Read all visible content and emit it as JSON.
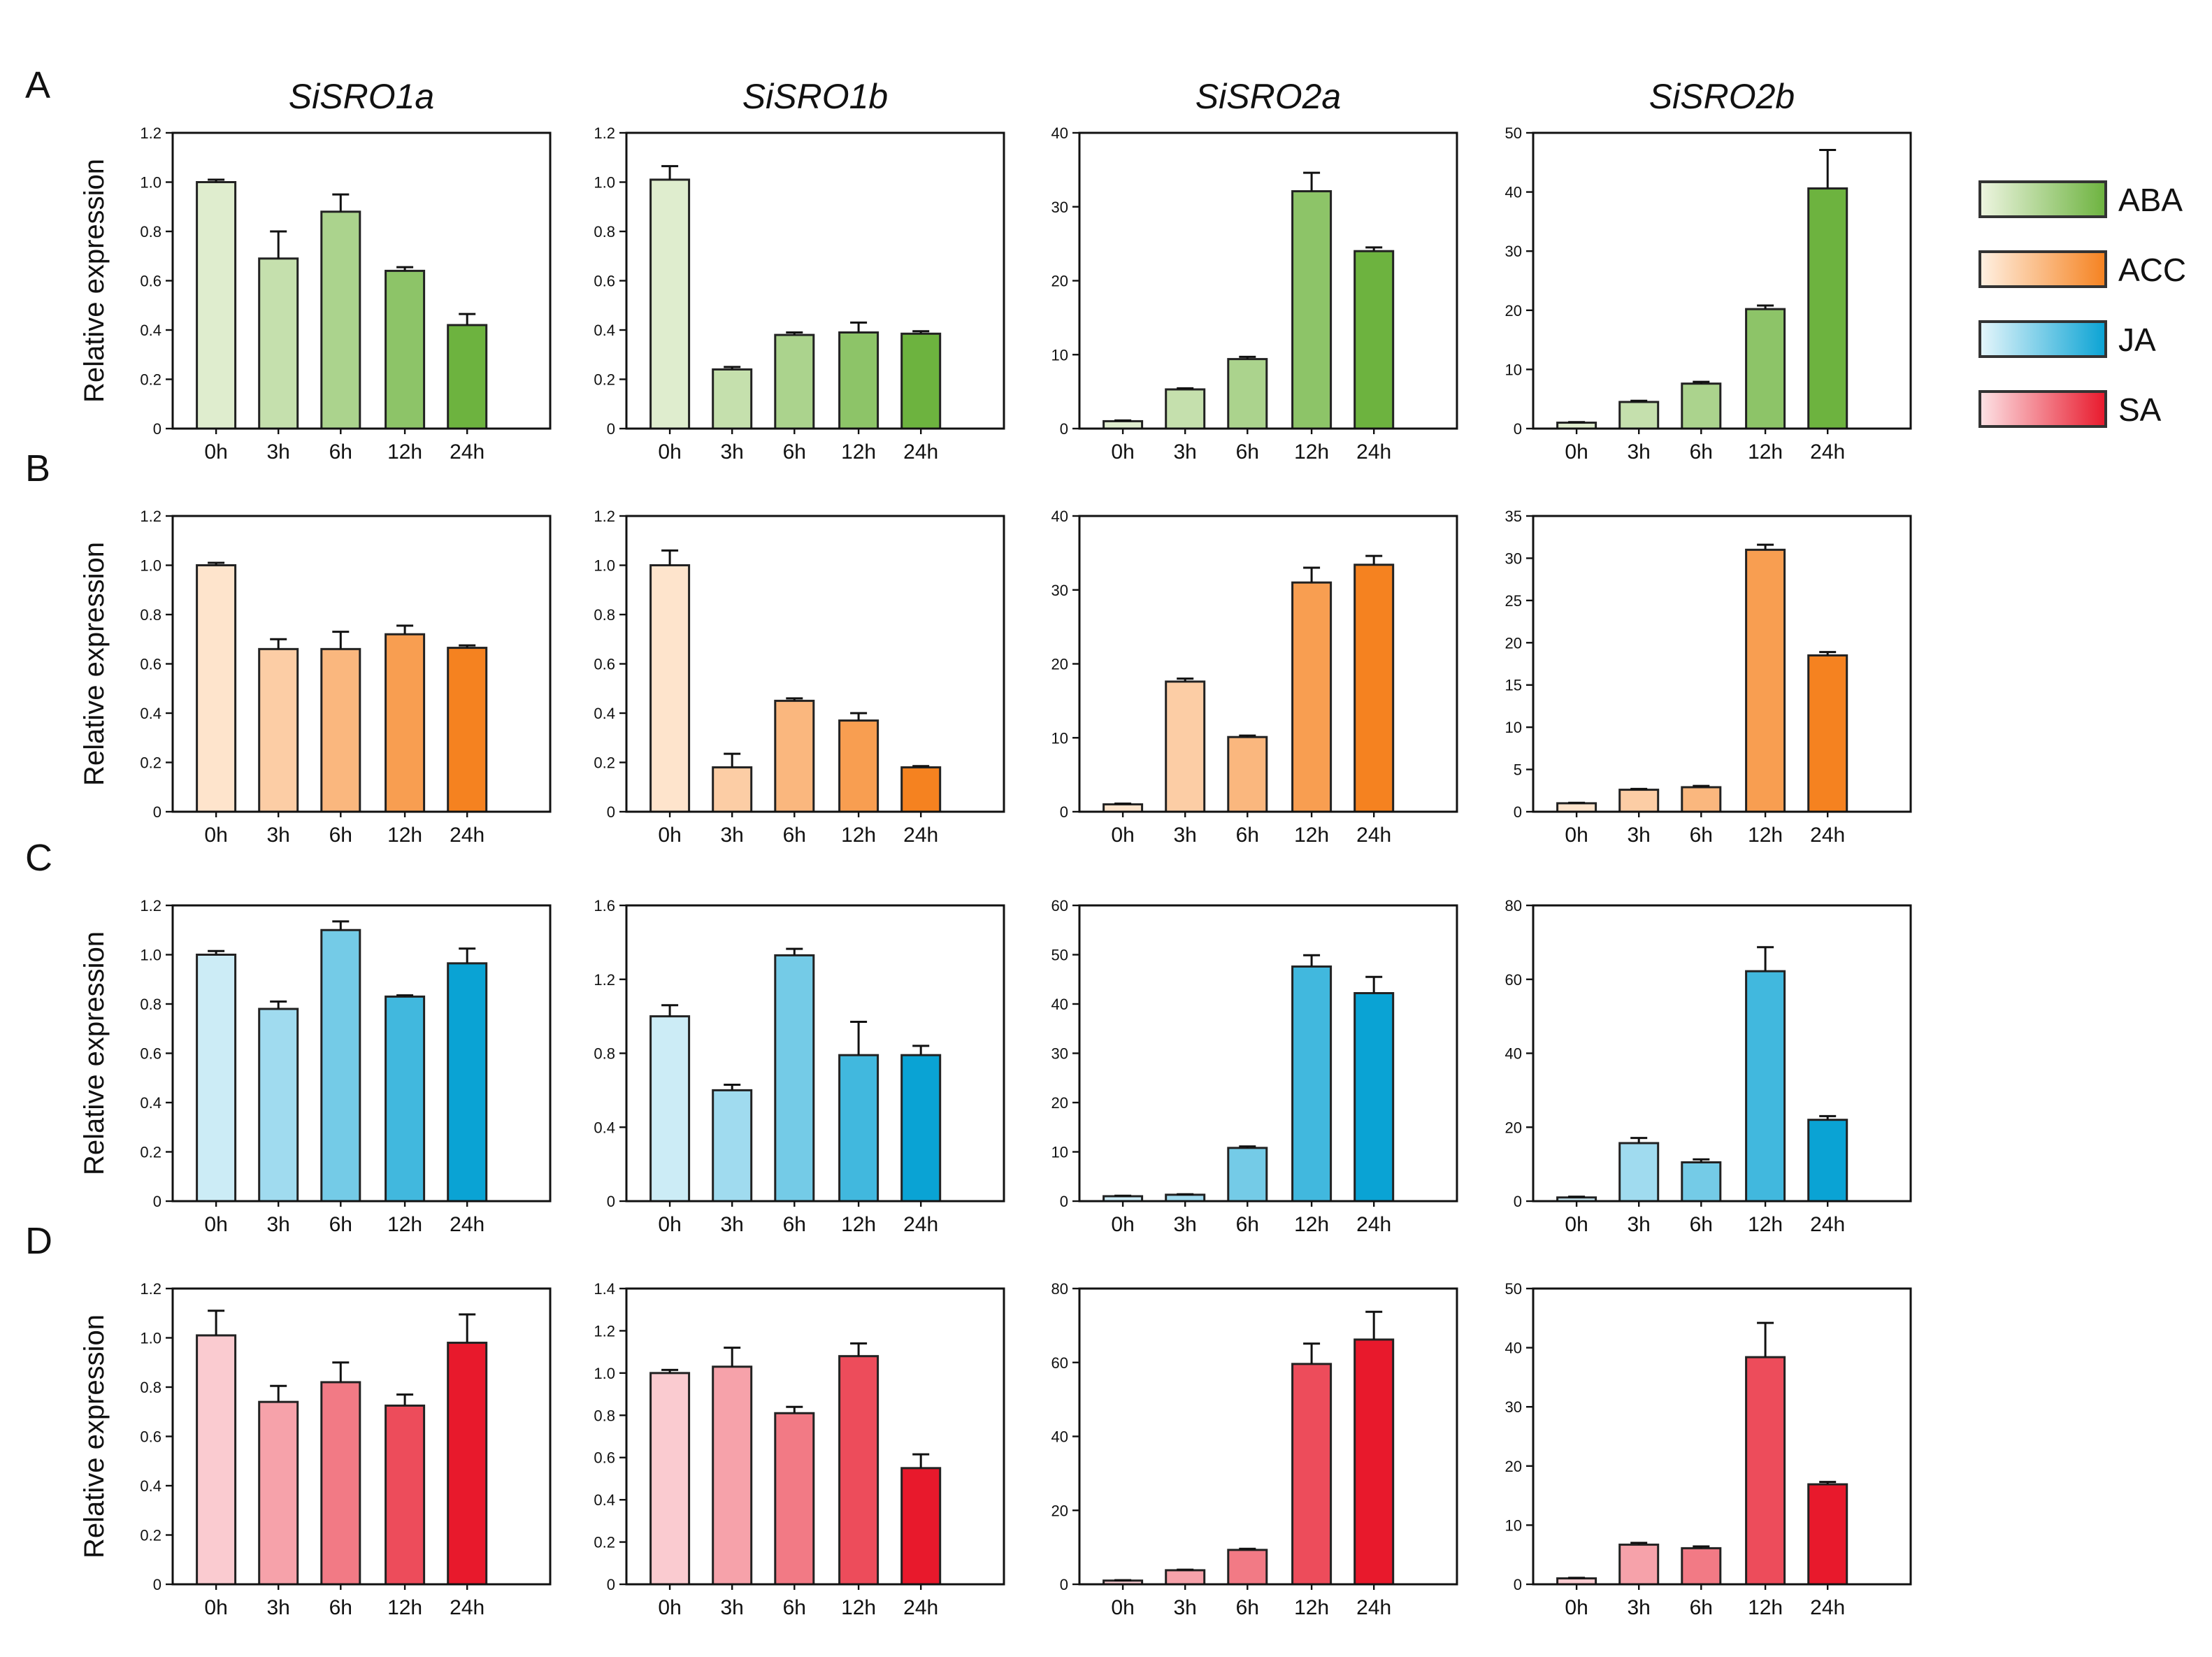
{
  "figure": {
    "legend": [
      {
        "label": "ABA",
        "light": "#eef5e1",
        "dark": "#6db33f"
      },
      {
        "label": "ACC",
        "light": "#fff1e3",
        "dark": "#f58220"
      },
      {
        "label": "JA",
        "light": "#e6f6fb",
        "dark": "#0aa3d4"
      },
      {
        "label": "SA",
        "light": "#fde3e6",
        "dark": "#e8192c"
      }
    ]
  },
  "chart_data": [
    {
      "type": "bar",
      "row": "A",
      "title": "SiSRO1a",
      "ylabel": "Relative expression",
      "treatment": "ABA",
      "categories": [
        "0h",
        "3h",
        "6h",
        "12h",
        "24h"
      ],
      "values": [
        1.0,
        0.69,
        0.88,
        0.64,
        0.42
      ],
      "errors": [
        0.01,
        0.11,
        0.07,
        0.015,
        0.045
      ],
      "ylim": [
        0,
        1.2
      ],
      "yticks": [
        "0",
        "0.2",
        "0.4",
        "0.6",
        "0.8",
        "1.0",
        "1.2"
      ]
    },
    {
      "type": "bar",
      "row": "A",
      "title": "SiSRO1b",
      "treatment": "ABA",
      "categories": [
        "0h",
        "3h",
        "6h",
        "12h",
        "24h"
      ],
      "values": [
        1.01,
        0.24,
        0.38,
        0.39,
        0.385
      ],
      "errors": [
        0.055,
        0.01,
        0.01,
        0.04,
        0.01
      ],
      "ylim": [
        0,
        1.2
      ],
      "yticks": [
        "0",
        "0.2",
        "0.4",
        "0.6",
        "0.8",
        "1.0",
        "1.2"
      ]
    },
    {
      "type": "bar",
      "row": "A",
      "title": "SiSRO2a",
      "treatment": "ABA",
      "categories": [
        "0h",
        "3h",
        "6h",
        "12h",
        "24h"
      ],
      "values": [
        1.0,
        5.3,
        9.4,
        32.1,
        24.0
      ],
      "errors": [
        0.1,
        0.15,
        0.3,
        2.5,
        0.5
      ],
      "ylim": [
        0,
        40
      ],
      "yticks": [
        "0",
        "10",
        "20",
        "30",
        "40"
      ]
    },
    {
      "type": "bar",
      "row": "A",
      "title": "SiSRO2b",
      "treatment": "ABA",
      "categories": [
        "0h",
        "3h",
        "6h",
        "12h",
        "24h"
      ],
      "values": [
        1.0,
        4.5,
        7.6,
        20.2,
        40.6
      ],
      "errors": [
        0.1,
        0.2,
        0.3,
        0.6,
        6.5
      ],
      "ylim": [
        0,
        50
      ],
      "yticks": [
        "0",
        "10",
        "20",
        "30",
        "40",
        "50"
      ]
    },
    {
      "type": "bar",
      "row": "B",
      "ylabel": "Relative expression",
      "treatment": "ACC",
      "categories": [
        "0h",
        "3h",
        "6h",
        "12h",
        "24h"
      ],
      "values": [
        1.0,
        0.66,
        0.66,
        0.72,
        0.665
      ],
      "errors": [
        0.01,
        0.04,
        0.07,
        0.035,
        0.01
      ],
      "ylim": [
        0,
        1.2
      ],
      "yticks": [
        "0",
        "0.2",
        "0.4",
        "0.6",
        "0.8",
        "1.0",
        "1.2"
      ]
    },
    {
      "type": "bar",
      "row": "B",
      "treatment": "ACC",
      "categories": [
        "0h",
        "3h",
        "6h",
        "12h",
        "24h"
      ],
      "values": [
        1.0,
        0.18,
        0.45,
        0.37,
        0.18
      ],
      "errors": [
        0.06,
        0.055,
        0.01,
        0.03,
        0.005
      ],
      "ylim": [
        0,
        1.2
      ],
      "yticks": [
        "0",
        "0.2",
        "0.4",
        "0.6",
        "0.8",
        "1.0",
        "1.2"
      ]
    },
    {
      "type": "bar",
      "row": "B",
      "treatment": "ACC",
      "categories": [
        "0h",
        "3h",
        "6h",
        "12h",
        "24h"
      ],
      "values": [
        1.0,
        17.6,
        10.1,
        31.0,
        33.4
      ],
      "errors": [
        0.1,
        0.4,
        0.2,
        2.0,
        1.2
      ],
      "ylim": [
        0,
        40
      ],
      "yticks": [
        "0",
        "10",
        "20",
        "30",
        "40"
      ]
    },
    {
      "type": "bar",
      "row": "B",
      "treatment": "ACC",
      "categories": [
        "0h",
        "3h",
        "6h",
        "12h",
        "24h"
      ],
      "values": [
        1.0,
        2.6,
        2.9,
        31.0,
        18.5
      ],
      "errors": [
        0.05,
        0.1,
        0.15,
        0.6,
        0.4
      ],
      "ylim": [
        0,
        35
      ],
      "yticks": [
        "0",
        "5",
        "10",
        "15",
        "20",
        "25",
        "30",
        "35"
      ]
    },
    {
      "type": "bar",
      "row": "C",
      "ylabel": "Relative expression",
      "treatment": "JA",
      "categories": [
        "0h",
        "3h",
        "6h",
        "12h",
        "24h"
      ],
      "values": [
        1.0,
        0.78,
        1.1,
        0.83,
        0.965
      ],
      "errors": [
        0.015,
        0.03,
        0.035,
        0.005,
        0.06
      ],
      "ylim": [
        0,
        1.2
      ],
      "yticks": [
        "0",
        "0.2",
        "0.4",
        "0.6",
        "0.8",
        "1.0",
        "1.2"
      ]
    },
    {
      "type": "bar",
      "row": "C",
      "treatment": "JA",
      "categories": [
        "0h",
        "3h",
        "6h",
        "12h",
        "24h"
      ],
      "values": [
        1.0,
        0.6,
        1.33,
        0.79,
        0.79
      ],
      "errors": [
        0.06,
        0.03,
        0.035,
        0.18,
        0.05
      ],
      "ylim": [
        0,
        1.6
      ],
      "yticks": [
        "0",
        "0.4",
        "0.8",
        "1.2",
        "1.6"
      ]
    },
    {
      "type": "bar",
      "row": "C",
      "treatment": "JA",
      "categories": [
        "0h",
        "3h",
        "6h",
        "12h",
        "24h"
      ],
      "values": [
        1.0,
        1.3,
        10.8,
        47.6,
        42.2
      ],
      "errors": [
        0.1,
        0.1,
        0.3,
        2.3,
        3.3
      ],
      "ylim": [
        0,
        60
      ],
      "yticks": [
        "0",
        "10",
        "20",
        "30",
        "40",
        "50",
        "60"
      ]
    },
    {
      "type": "bar",
      "row": "C",
      "treatment": "JA",
      "categories": [
        "0h",
        "3h",
        "6h",
        "12h",
        "24h"
      ],
      "values": [
        1.0,
        15.7,
        10.5,
        62.2,
        22.0
      ],
      "errors": [
        0.2,
        1.4,
        0.8,
        6.5,
        1.0
      ],
      "ylim": [
        0,
        80
      ],
      "yticks": [
        "0",
        "20",
        "40",
        "60",
        "80"
      ]
    },
    {
      "type": "bar",
      "row": "D",
      "ylabel": "Relative expression",
      "treatment": "SA",
      "categories": [
        "0h",
        "3h",
        "6h",
        "12h",
        "24h"
      ],
      "values": [
        1.01,
        0.74,
        0.82,
        0.725,
        0.98
      ],
      "errors": [
        0.1,
        0.065,
        0.08,
        0.045,
        0.115
      ],
      "ylim": [
        0,
        1.2
      ],
      "yticks": [
        "0",
        "0.2",
        "0.4",
        "0.6",
        "0.8",
        "1.0",
        "1.2"
      ]
    },
    {
      "type": "bar",
      "row": "D",
      "treatment": "SA",
      "categories": [
        "0h",
        "3h",
        "6h",
        "12h",
        "24h"
      ],
      "values": [
        1.0,
        1.03,
        0.81,
        1.08,
        0.55
      ],
      "errors": [
        0.015,
        0.09,
        0.03,
        0.06,
        0.065
      ],
      "ylim": [
        0,
        1.4
      ],
      "yticks": [
        "0",
        "0.2",
        "0.4",
        "0.6",
        "0.8",
        "1.0",
        "1.2",
        "1.4"
      ]
    },
    {
      "type": "bar",
      "row": "D",
      "treatment": "SA",
      "categories": [
        "0h",
        "3h",
        "6h",
        "12h",
        "24h"
      ],
      "values": [
        1.0,
        3.8,
        9.3,
        59.6,
        66.2
      ],
      "errors": [
        0.1,
        0.15,
        0.3,
        5.5,
        7.5
      ],
      "ylim": [
        0,
        80
      ],
      "yticks": [
        "0",
        "20",
        "40",
        "60",
        "80"
      ]
    },
    {
      "type": "bar",
      "row": "D",
      "treatment": "SA",
      "categories": [
        "0h",
        "3h",
        "6h",
        "12h",
        "24h"
      ],
      "values": [
        1.0,
        6.7,
        6.1,
        38.4,
        16.9
      ],
      "errors": [
        0.1,
        0.3,
        0.3,
        5.8,
        0.4
      ],
      "ylim": [
        0,
        50
      ],
      "yticks": [
        "0",
        "10",
        "20",
        "30",
        "40",
        "50"
      ]
    }
  ]
}
